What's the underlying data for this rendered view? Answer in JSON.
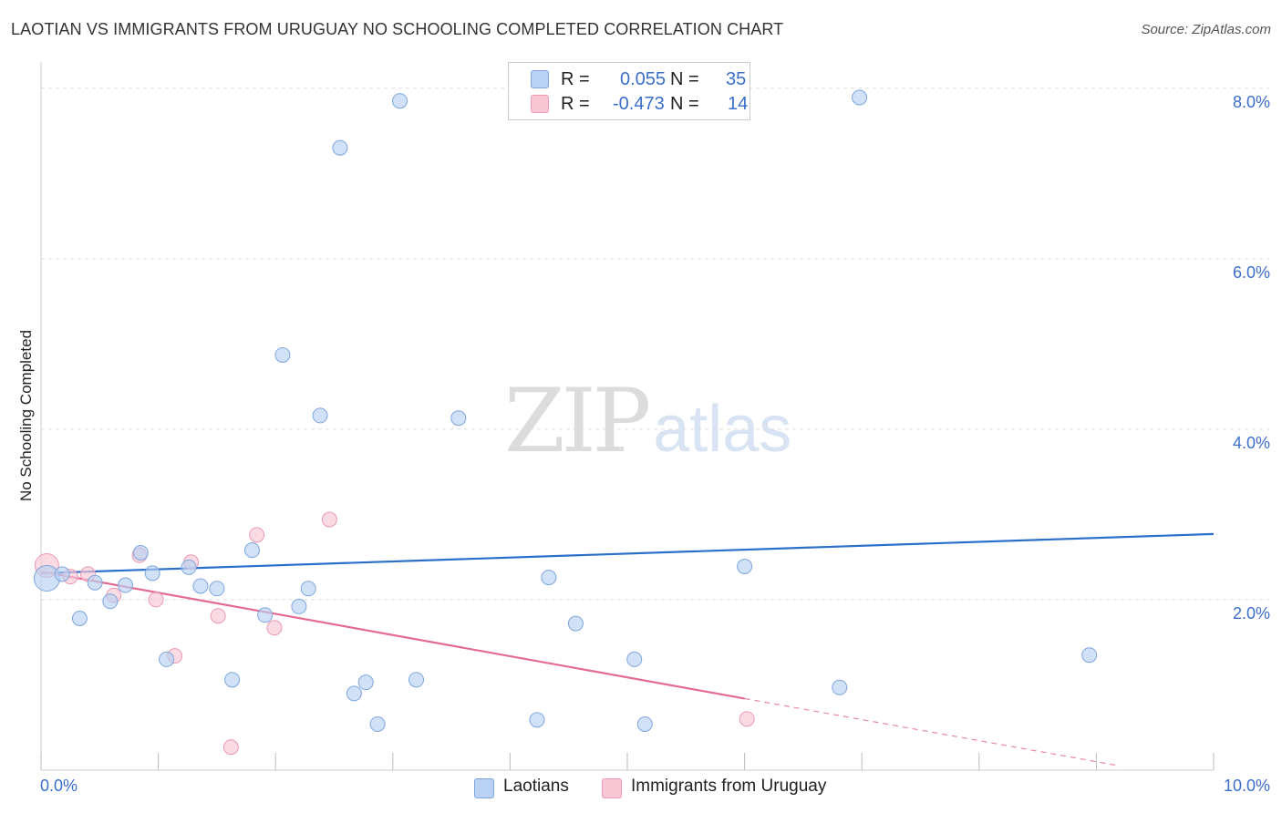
{
  "header": {
    "title": "LAOTIAN VS IMMIGRANTS FROM URUGUAY NO SCHOOLING COMPLETED CORRELATION CHART",
    "source": "Source: ZipAtlas.com"
  },
  "watermark": {
    "zip": "ZIP",
    "atlas": "atlas"
  },
  "legend": {
    "rows": [
      {
        "r_key": "R =",
        "r_value": "0.055",
        "n_key": "N =",
        "n_value": "35",
        "color": "#b9d1f2"
      },
      {
        "r_key": "R =",
        "r_value": "-0.473",
        "n_key": "N =",
        "n_value": "14",
        "color": "#f8c6d4"
      }
    ]
  },
  "bottom_legend": {
    "series_a": "Laotians",
    "series_b": "Immigrants from Uruguay"
  },
  "colors": {
    "blue_fill": "#b9d1f2",
    "blue_stroke": "#7ea6dc",
    "blue_line": "#2a6fc9",
    "pink_fill": "#f8c6d4",
    "pink_stroke": "#ea9ab3",
    "pink_line": "#e46a93",
    "tick_label": "#3b6fc9",
    "grid": "#dddddd"
  },
  "chart_data": {
    "type": "scatter",
    "title": "LAOTIAN VS IMMIGRANTS FROM URUGUAY NO SCHOOLING COMPLETED CORRELATION CHART",
    "xlabel": "",
    "ylabel": "No Schooling Completed",
    "xlim": [
      0,
      10
    ],
    "ylim": [
      0,
      8.2
    ],
    "x_tick_labels": [
      "0.0%",
      "10.0%"
    ],
    "y_ticks": [
      2,
      4,
      6,
      8
    ],
    "y_tick_labels": [
      "2.0%",
      "4.0%",
      "6.0%",
      "8.0%"
    ],
    "grid": true,
    "series": [
      {
        "name": "Laotians",
        "R": 0.055,
        "N": 35,
        "points": [
          {
            "x": 0.05,
            "y": 2.25,
            "size": "large"
          },
          {
            "x": 0.18,
            "y": 2.3
          },
          {
            "x": 0.33,
            "y": 1.78
          },
          {
            "x": 0.46,
            "y": 2.2
          },
          {
            "x": 0.59,
            "y": 1.98
          },
          {
            "x": 0.72,
            "y": 2.17
          },
          {
            "x": 0.85,
            "y": 2.55
          },
          {
            "x": 0.95,
            "y": 2.31
          },
          {
            "x": 1.07,
            "y": 1.3
          },
          {
            "x": 1.26,
            "y": 2.38
          },
          {
            "x": 1.36,
            "y": 2.16
          },
          {
            "x": 1.5,
            "y": 2.13
          },
          {
            "x": 1.63,
            "y": 1.06
          },
          {
            "x": 1.8,
            "y": 2.58
          },
          {
            "x": 1.91,
            "y": 1.82
          },
          {
            "x": 2.06,
            "y": 4.87
          },
          {
            "x": 2.2,
            "y": 1.92
          },
          {
            "x": 2.28,
            "y": 2.13
          },
          {
            "x": 2.38,
            "y": 4.16
          },
          {
            "x": 2.55,
            "y": 7.3
          },
          {
            "x": 2.67,
            "y": 0.9
          },
          {
            "x": 2.77,
            "y": 1.03
          },
          {
            "x": 2.87,
            "y": 0.54
          },
          {
            "x": 3.06,
            "y": 7.85
          },
          {
            "x": 3.2,
            "y": 1.06
          },
          {
            "x": 3.56,
            "y": 4.13
          },
          {
            "x": 4.23,
            "y": 0.59
          },
          {
            "x": 4.33,
            "y": 2.26
          },
          {
            "x": 4.56,
            "y": 1.72
          },
          {
            "x": 5.06,
            "y": 1.3
          },
          {
            "x": 5.15,
            "y": 0.54
          },
          {
            "x": 6.0,
            "y": 2.39
          },
          {
            "x": 6.81,
            "y": 0.97
          },
          {
            "x": 6.98,
            "y": 7.89
          },
          {
            "x": 8.94,
            "y": 1.35
          }
        ],
        "trend": {
          "x": [
            0,
            10
          ],
          "y": [
            2.31,
            2.77
          ]
        }
      },
      {
        "name": "Immigrants from Uruguay",
        "R": -0.473,
        "N": 14,
        "points": [
          {
            "x": 0.05,
            "y": 2.4,
            "size": "large"
          },
          {
            "x": 0.25,
            "y": 2.27
          },
          {
            "x": 0.4,
            "y": 2.3
          },
          {
            "x": 0.62,
            "y": 2.05
          },
          {
            "x": 0.84,
            "y": 2.52
          },
          {
            "x": 0.98,
            "y": 2.0
          },
          {
            "x": 1.14,
            "y": 1.34
          },
          {
            "x": 1.28,
            "y": 2.44
          },
          {
            "x": 1.51,
            "y": 1.81
          },
          {
            "x": 1.62,
            "y": 0.27
          },
          {
            "x": 1.84,
            "y": 2.76
          },
          {
            "x": 1.99,
            "y": 1.67
          },
          {
            "x": 2.46,
            "y": 2.94
          },
          {
            "x": 6.02,
            "y": 0.6
          }
        ],
        "trend": {
          "x": [
            0,
            6.0
          ],
          "y": [
            2.33,
            0.84
          ]
        },
        "trend_extension": {
          "x": [
            6.0,
            9.2
          ],
          "y": [
            0.84,
            0.05
          ]
        }
      }
    ]
  }
}
